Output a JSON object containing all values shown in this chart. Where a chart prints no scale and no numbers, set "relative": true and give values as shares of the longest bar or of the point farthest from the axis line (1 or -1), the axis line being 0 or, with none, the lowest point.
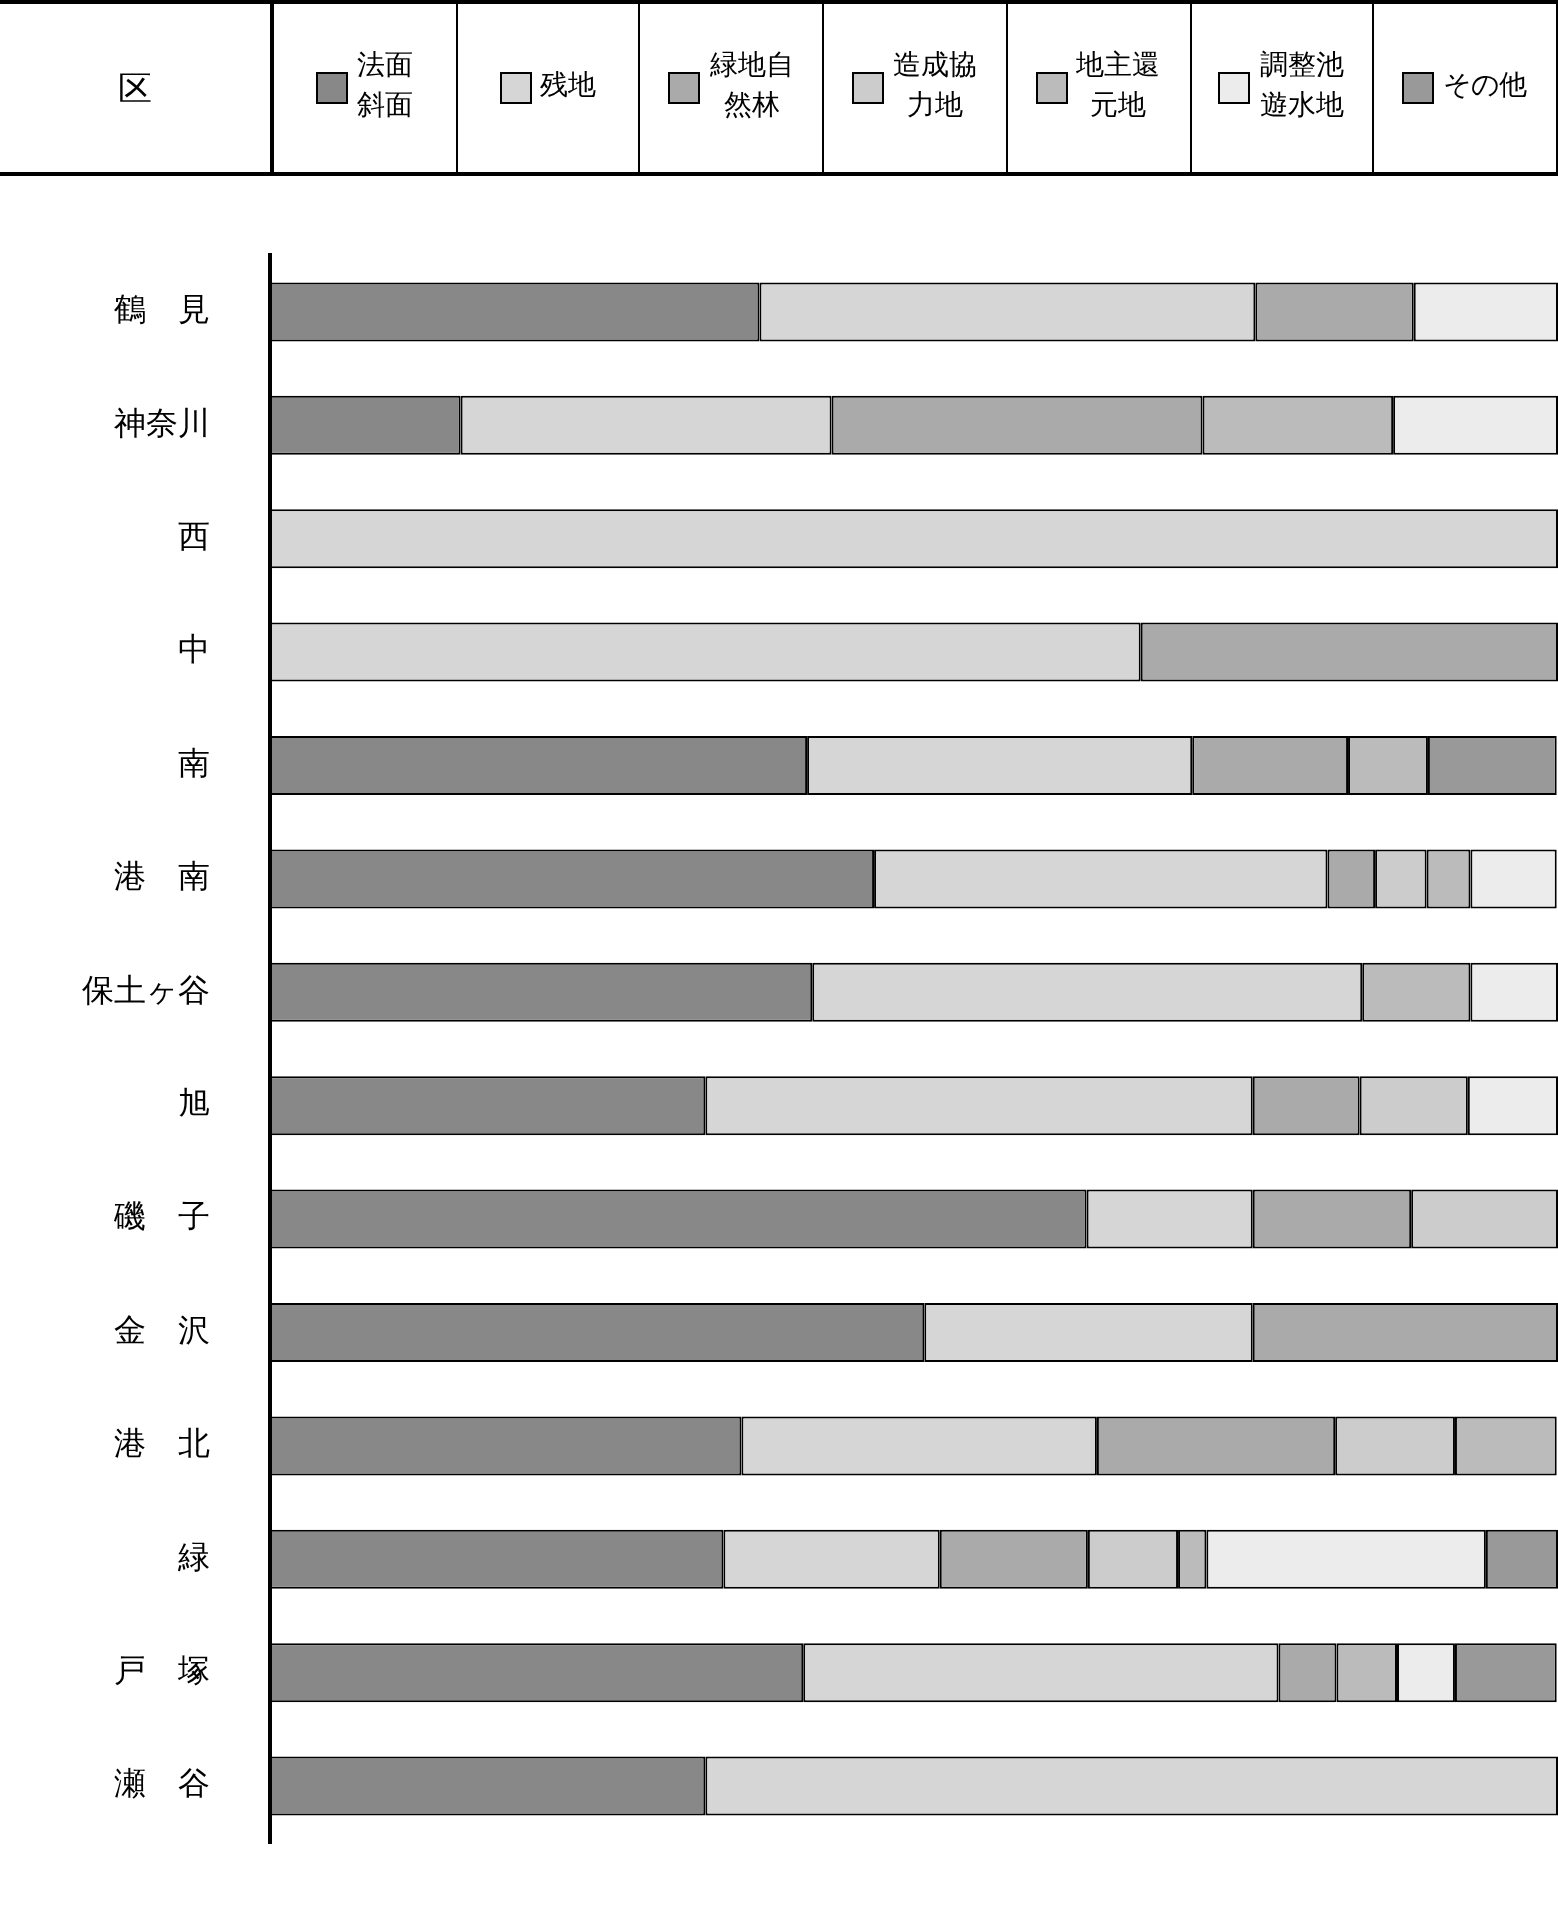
{
  "chart_data": {
    "type": "bar",
    "orientation": "horizontal",
    "stacked": true,
    "relative": true,
    "ylabel": "区",
    "legend": "top",
    "categories": [
      "鶴　見",
      "神奈川",
      "西",
      "中",
      "南",
      "港　南",
      "保土ヶ谷",
      "旭",
      "磯　子",
      "金　沢",
      "港　北",
      "緑",
      "戸　塚",
      "瀬　谷"
    ],
    "series": [
      {
        "name": "法面斜面",
        "color": "#888888",
        "values": [
          0.38,
          0.148,
          0,
          0,
          0.417,
          0.469,
          0.421,
          0.338,
          0.634,
          0.508,
          0.366,
          0.352,
          0.414,
          0.338
        ]
      },
      {
        "name": "残地",
        "color": "#d6d6d6",
        "values": [
          0.385,
          0.288,
          1,
          0.676,
          0.299,
          0.352,
          0.427,
          0.425,
          0.129,
          0.255,
          0.276,
          0.168,
          0.369,
          0.662
        ]
      },
      {
        "name": "緑地自然林",
        "color": "#aaaaaa",
        "values": [
          0.123,
          0.288,
          0,
          0.324,
          0.121,
          0.037,
          0,
          0.083,
          0.123,
          0.237,
          0.185,
          0.115,
          0.045,
          0
        ]
      },
      {
        "name": "造成協力地",
        "color": "#cccccc",
        "values": [
          0,
          0,
          0,
          0,
          0,
          0.04,
          0,
          0.084,
          0.114,
          0,
          0.093,
          0.07,
          0,
          0
        ]
      },
      {
        "name": "地主還元地",
        "color": "#bbbbbb",
        "values": [
          0,
          0.148,
          0,
          0,
          0.062,
          0.034,
          0.084,
          0,
          0,
          0,
          0.079,
          0.022,
          0.047,
          0
        ]
      },
      {
        "name": "調整池遊水地",
        "color": "#ececec",
        "values": [
          0.112,
          0.128,
          0,
          0,
          0,
          0.067,
          0.068,
          0.07,
          0,
          0,
          0,
          0.217,
          0.045,
          0
        ]
      },
      {
        "name": "その他",
        "color": "#999999",
        "values": [
          0,
          0,
          0,
          0,
          0.1,
          0,
          0,
          0,
          0,
          0,
          0,
          0.056,
          0.079,
          0
        ]
      }
    ]
  }
}
